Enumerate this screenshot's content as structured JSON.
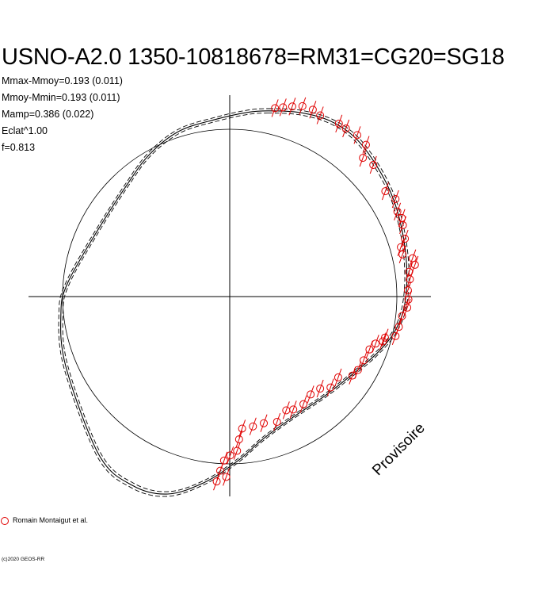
{
  "title": "USNO-A2.0 1350-10818678=RM31=CG20=SG18",
  "stats": [
    "Mmax-Mmoy=0.193 (0.011)",
    "Mmoy-Mmin=0.193 (0.011)",
    "Mamp=0.386 (0.022)",
    "Eclat^1.00",
    "f=0.813"
  ],
  "legend": {
    "label": "Romain Montaigut et al."
  },
  "copyright": "(c)2020 GEOS-RR",
  "watermark": "Provisoire",
  "colors": {
    "points": "#e00000",
    "axes": "#000000",
    "curve": "#000000"
  },
  "chart_data": {
    "type": "scatter",
    "title": "USNO-A2.0 1350-10818678=RM31=CG20=SG18",
    "coordinate_system": "polar phase diagram (phase as angle, magnitude as radius)",
    "reference_circle": {
      "radius": 1.0
    },
    "mag_range": {
      "max_minus_mean": 0.193,
      "mean_minus_min": 0.193,
      "amplitude": 0.386
    },
    "series": [
      {
        "name": "Romain Montaigut et al.",
        "points": [
          [
            0.271,
            1.126
          ],
          [
            0.319,
            1.131
          ],
          [
            0.374,
            1.136
          ],
          [
            0.435,
            1.138
          ],
          [
            0.497,
            1.117
          ],
          [
            0.541,
            1.083
          ],
          [
            0.653,
            1.034
          ],
          [
            0.695,
            1.005
          ],
          [
            0.763,
            0.965
          ],
          [
            0.815,
            0.907
          ],
          [
            0.797,
            0.829
          ],
          [
            0.859,
            0.787
          ],
          [
            0.931,
            0.63
          ],
          [
            0.992,
            0.583
          ],
          [
            1.003,
            0.508
          ],
          [
            1.029,
            0.47
          ],
          [
            1.036,
            0.427
          ],
          [
            1.048,
            0.346
          ],
          [
            1.024,
            0.295
          ],
          [
            1.034,
            0.252
          ],
          [
            1.094,
            0.229
          ],
          [
            1.108,
            0.19
          ],
          [
            1.073,
            0.148
          ],
          [
            1.078,
            0.103
          ],
          [
            1.066,
            0.038
          ],
          [
            1.069,
            -0.018
          ],
          [
            1.062,
            -0.066
          ],
          [
            1.031,
            -0.116
          ],
          [
            1.012,
            -0.181
          ],
          [
            0.992,
            -0.236
          ],
          [
            0.929,
            -0.245
          ],
          [
            0.916,
            -0.268
          ],
          [
            0.873,
            -0.281
          ],
          [
            0.836,
            -0.316
          ],
          [
            0.801,
            -0.381
          ],
          [
            0.767,
            -0.439
          ],
          [
            0.734,
            -0.472
          ],
          [
            0.649,
            -0.483
          ],
          [
            0.603,
            -0.543
          ],
          [
            0.541,
            -0.55
          ],
          [
            0.484,
            -0.585
          ],
          [
            0.441,
            -0.643
          ],
          [
            0.38,
            -0.675
          ],
          [
            0.338,
            -0.68
          ],
          [
            0.283,
            -0.749
          ],
          [
            0.204,
            -0.757
          ],
          [
            0.139,
            -0.776
          ],
          [
            0.074,
            -0.789
          ],
          [
            0.056,
            -0.853
          ],
          [
            0.044,
            -0.922
          ],
          [
            0.003,
            -0.949
          ],
          [
            -0.034,
            -0.98
          ],
          [
            -0.057,
            -1.041
          ],
          [
            -0.021,
            -1.078
          ],
          [
            -0.078,
            -1.105
          ]
        ]
      }
    ],
    "fit_curve": [
      [
        0.23,
        1.11
      ],
      [
        0.42,
        1.1
      ],
      [
        0.6,
        1.05
      ],
      [
        0.75,
        0.95
      ],
      [
        0.88,
        0.78
      ],
      [
        0.98,
        0.58
      ],
      [
        1.04,
        0.35
      ],
      [
        1.06,
        0.12
      ],
      [
        1.04,
        -0.08
      ],
      [
        0.98,
        -0.22
      ],
      [
        0.88,
        -0.34
      ],
      [
        0.74,
        -0.46
      ],
      [
        0.56,
        -0.6
      ],
      [
        0.38,
        -0.72
      ],
      [
        0.2,
        -0.85
      ],
      [
        0.05,
        -0.98
      ],
      [
        -0.15,
        -1.11
      ],
      [
        -0.37,
        -1.18
      ],
      [
        -0.58,
        -1.13
      ],
      [
        -0.78,
        -0.95
      ],
      [
        -0.98,
        -0.42
      ],
      [
        -1.01,
        -0.1
      ],
      [
        -0.97,
        0.08
      ],
      [
        -0.8,
        0.38
      ],
      [
        -0.62,
        0.66
      ],
      [
        -0.48,
        0.85
      ],
      [
        -0.3,
        0.99
      ],
      [
        -0.08,
        1.06
      ],
      [
        0.1,
        1.1
      ]
    ]
  }
}
